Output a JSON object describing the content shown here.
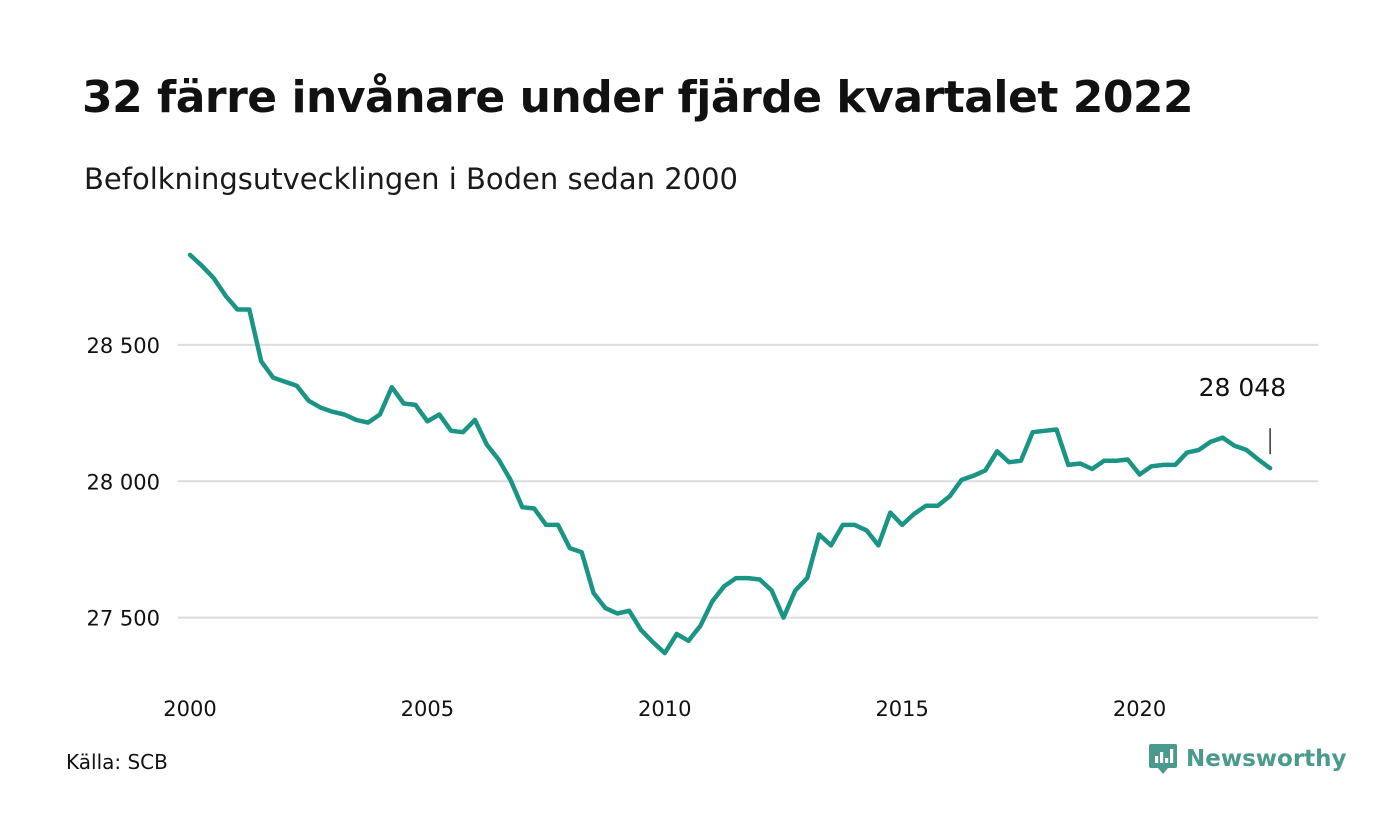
{
  "header": {
    "title": "32 färre invånare under fjärde kvartalet 2022",
    "subtitle": "Befolkningsutvecklingen i Boden sedan 2000"
  },
  "footer": {
    "source": "Källa: SCB",
    "brand": "Newsworthy",
    "brand_icon": "newsworthy-logo-icon"
  },
  "colors": {
    "line": "#1a9485",
    "grid": "#dcdce0",
    "text": "#111111",
    "brand": "#4a9a8e"
  },
  "chart_data": {
    "type": "line",
    "title": "32 färre invånare under fjärde kvartalet 2022",
    "subtitle": "Befolkningsutvecklingen i Boden sedan 2000",
    "xlabel": "",
    "ylabel": "",
    "xlim": [
      2000,
      2023
    ],
    "ylim": [
      27330,
      28870
    ],
    "x_ticks": [
      2000,
      2005,
      2010,
      2015,
      2020
    ],
    "x_tick_labels": [
      "2000",
      "2005",
      "2010",
      "2015",
      "2020"
    ],
    "y_ticks": [
      27500,
      28000,
      28500
    ],
    "y_tick_labels": [
      "27 500",
      "28 000",
      "28 500"
    ],
    "grid": "horizontal",
    "legend": "none",
    "end_label": "28 048",
    "series": [
      {
        "x": [
          2000.0,
          2000.25,
          2000.5,
          2000.75,
          2001.0,
          2001.25,
          2001.5,
          2001.75,
          2002.0,
          2002.25,
          2002.5,
          2002.75,
          2003.0,
          2003.25,
          2003.5,
          2003.75,
          2004.0,
          2004.25,
          2004.5,
          2004.75,
          2005.0,
          2005.25,
          2005.5,
          2005.75,
          2006.0,
          2006.25,
          2006.5,
          2006.75,
          2007.0,
          2007.25,
          2007.5,
          2007.75,
          2008.0,
          2008.25,
          2008.5,
          2008.75,
          2009.0,
          2009.25,
          2009.5,
          2009.75,
          2010.0,
          2010.25,
          2010.5,
          2010.75,
          2011.0,
          2011.25,
          2011.5,
          2011.75,
          2012.0,
          2012.25,
          2012.5,
          2012.75,
          2013.0,
          2013.25,
          2013.5,
          2013.75,
          2014.0,
          2014.25,
          2014.5,
          2014.75,
          2015.0,
          2015.25,
          2015.5,
          2015.75,
          2016.0,
          2016.25,
          2016.5,
          2016.75,
          2017.0,
          2017.25,
          2017.5,
          2017.75,
          2018.0,
          2018.25,
          2018.5,
          2018.75,
          2019.0,
          2019.25,
          2019.5,
          2019.75,
          2020.0,
          2020.25,
          2020.5,
          2020.75,
          2021.0,
          2021.25,
          2021.5,
          2021.75,
          2022.0,
          2022.25,
          2022.5,
          2022.75
        ],
        "values": [
          28830,
          28790,
          28745,
          28680,
          28630,
          28630,
          28440,
          28380,
          28365,
          28350,
          28295,
          28270,
          28255,
          28245,
          28225,
          28215,
          28245,
          28345,
          28285,
          28280,
          28220,
          28245,
          28185,
          28180,
          28225,
          28135,
          28080,
          28005,
          27905,
          27900,
          27840,
          27840,
          27755,
          27740,
          27590,
          27535,
          27515,
          27525,
          27455,
          27410,
          27370,
          27440,
          27415,
          27470,
          27560,
          27615,
          27645,
          27645,
          27640,
          27600,
          27500,
          27600,
          27645,
          27805,
          27765,
          27840,
          27840,
          27820,
          27765,
          27885,
          27840,
          27880,
          27910,
          27910,
          27945,
          28005,
          28020,
          28040,
          28110,
          28070,
          28075,
          28180,
          28185,
          28190,
          28060,
          28065,
          28045,
          28075,
          28075,
          28080,
          28025,
          28055,
          28060,
          28060,
          28105,
          28115,
          28145,
          28160,
          28130,
          28115,
          28080,
          28048
        ]
      }
    ]
  }
}
